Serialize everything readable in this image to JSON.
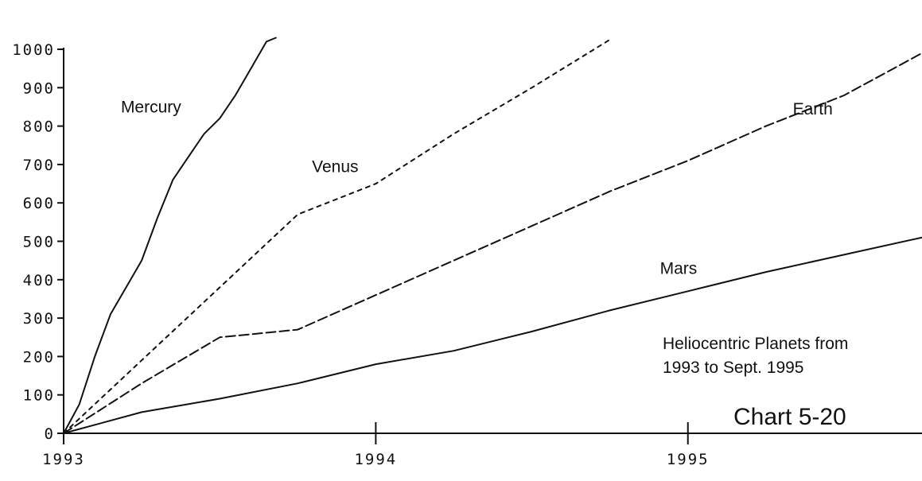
{
  "chart_data": {
    "type": "line",
    "title": "",
    "xlabel": "",
    "ylabel": "",
    "ylim": [
      0,
      1000
    ],
    "xlim": [
      1993,
      1995.75
    ],
    "grid": false,
    "legend": "none",
    "y_ticks": [
      {
        "value": 0,
        "label": "0"
      },
      {
        "value": 100,
        "label": "100"
      },
      {
        "value": 200,
        "label": "200"
      },
      {
        "value": 300,
        "label": "300"
      },
      {
        "value": 400,
        "label": "400"
      },
      {
        "value": 500,
        "label": "500"
      },
      {
        "value": 600,
        "label": "600"
      },
      {
        "value": 700,
        "label": "700"
      },
      {
        "value": 800,
        "label": "800"
      },
      {
        "value": 900,
        "label": "900"
      },
      {
        "value": 1000,
        "label": "1000"
      }
    ],
    "x_ticks": [
      {
        "value": 1993,
        "label": "1993"
      },
      {
        "value": 1994,
        "label": "1994"
      },
      {
        "value": 1995,
        "label": "1995"
      }
    ],
    "series": [
      {
        "name": "Mercury",
        "style": "solid",
        "label_x": 1993.28,
        "label_y": 835,
        "x": [
          1993,
          1993.05,
          1993.1,
          1993.15,
          1993.2,
          1993.25,
          1993.3,
          1993.35,
          1993.4,
          1993.45,
          1993.5,
          1993.55,
          1993.6,
          1993.65,
          1993.68
        ],
        "values": [
          0,
          75,
          200,
          310,
          380,
          450,
          560,
          660,
          720,
          780,
          820,
          880,
          950,
          1020,
          1030
        ]
      },
      {
        "name": "Venus",
        "style": "dotted",
        "label_x": 1993.87,
        "label_y": 680,
        "x": [
          1993,
          1993.25,
          1993.5,
          1993.75,
          1994,
          1994.25,
          1994.5,
          1994.75
        ],
        "values": [
          0,
          190,
          380,
          570,
          650,
          780,
          900,
          1025
        ]
      },
      {
        "name": "Earth",
        "style": "dashed",
        "label_x": 1995.4,
        "label_y": 830,
        "x": [
          1993,
          1993.25,
          1993.5,
          1993.75,
          1994,
          1994.25,
          1994.5,
          1994.75,
          1995,
          1995.25,
          1995.5,
          1995.75
        ],
        "values": [
          0,
          130,
          250,
          270,
          360,
          450,
          540,
          630,
          710,
          800,
          880,
          990
        ]
      },
      {
        "name": "Mars",
        "style": "solid",
        "label_x": 1994.97,
        "label_y": 415,
        "x": [
          1993,
          1993.25,
          1993.5,
          1993.75,
          1994,
          1994.25,
          1994.5,
          1994.75,
          1995,
          1995.25,
          1995.5,
          1995.75
        ],
        "values": [
          0,
          55,
          90,
          130,
          180,
          215,
          265,
          320,
          370,
          420,
          465,
          510
        ]
      }
    ],
    "annotations": [
      {
        "text": "Heliocentric Planets from",
        "role": "note-line-1"
      },
      {
        "text": "1993 to Sept. 1995",
        "role": "note-line-2"
      }
    ],
    "chart_id": "Chart 5-20"
  }
}
